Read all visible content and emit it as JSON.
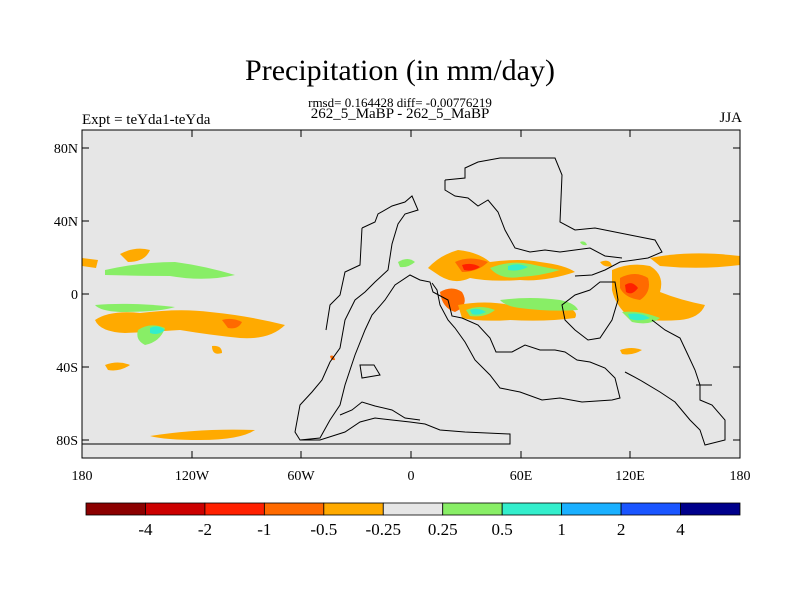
{
  "title": "Precipitation (in mm/day)",
  "stats": {
    "text": "rmsd= 0.164428 diff= -0.00776219"
  },
  "subtitle": "262_5_MaBP - 262_5_MaBP",
  "experiment": "Expt = teYda1-teYda",
  "season": "JJA",
  "axes": {
    "lon_labels": [
      "180",
      "120W",
      "60W",
      "0",
      "60E",
      "120E",
      "180"
    ],
    "lat_labels": [
      "80N",
      "40N",
      "0",
      "40S",
      "80S"
    ]
  },
  "colorbar": {
    "colors": [
      "#8b0000",
      "#cc0000",
      "#ff2000",
      "#ff6a00",
      "#ffaa00",
      "#e6e6e6",
      "#88ee66",
      "#33eecc",
      "#1ab0ff",
      "#1a55ff",
      "#00008b"
    ],
    "labels": [
      "-4",
      "-2",
      "-1",
      "-0.5",
      "-0.25",
      "0.25",
      "0.5",
      "1",
      "2",
      "4"
    ]
  },
  "colors": {
    "background": "#e6e6e6",
    "orange": "#ffaa00",
    "dark_orange": "#ff6a00",
    "red": "#ff2000",
    "green": "#88ee66",
    "cyan": "#33eecc"
  }
}
